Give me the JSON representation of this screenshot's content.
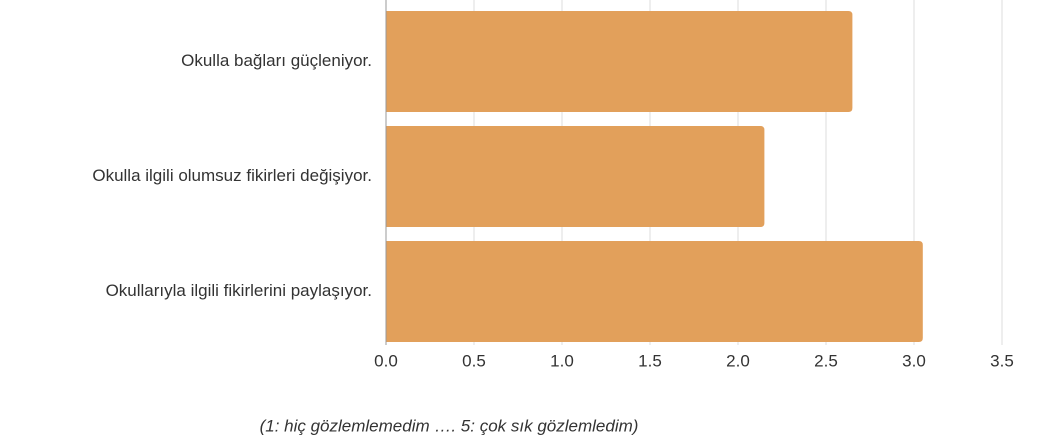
{
  "chart_data": {
    "type": "hbar",
    "categories": [
      "Okulla bağları güçleniyor.",
      "Okulla ilgili olumsuz fikirleri değişiyor.",
      "Okullarıyla ilgili fikirlerini paylaşıyor."
    ],
    "values": [
      2.65,
      2.15,
      3.05
    ],
    "color": "#e2a05b",
    "xlim": [
      0,
      3.5
    ],
    "xticks": [
      {
        "value": 0,
        "label": "0.0"
      },
      {
        "value": 0.5,
        "label": "0.5"
      },
      {
        "value": 1,
        "label": "1.0"
      },
      {
        "value": 1.5,
        "label": "1.5"
      },
      {
        "value": 2,
        "label": "2.0"
      },
      {
        "value": 2.5,
        "label": "2.5"
      },
      {
        "value": 3,
        "label": "3.0"
      },
      {
        "value": 3.5,
        "label": "3.5"
      }
    ],
    "grid": true,
    "x_label": "(1: hiç gözlemlemedim …. 5: çok sık gözlemledim)"
  }
}
